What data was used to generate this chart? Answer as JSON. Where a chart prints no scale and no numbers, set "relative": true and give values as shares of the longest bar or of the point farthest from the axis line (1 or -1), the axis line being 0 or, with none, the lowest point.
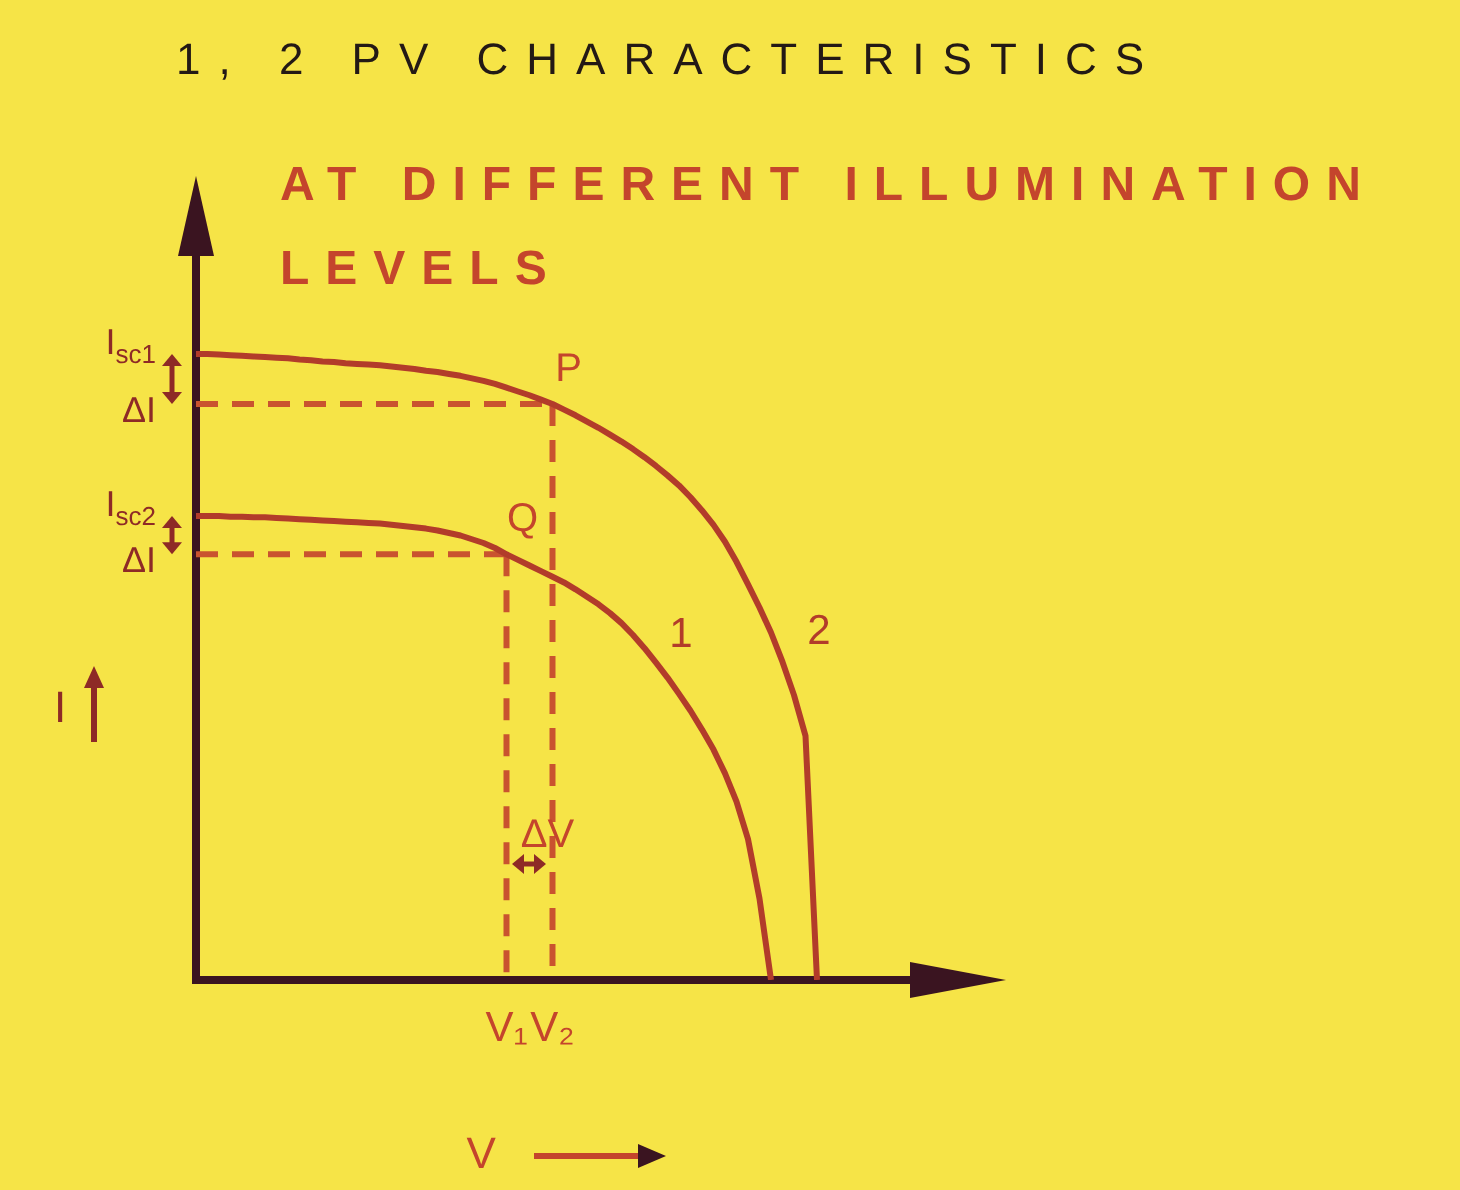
{
  "chart_data": {
    "type": "line",
    "title": "1, 2 PV CHARACTERISTICS",
    "subtitle": "AT DIFFERENT ILLUMINATION LEVELS",
    "xlabel": "V",
    "ylabel": "I",
    "relative": true,
    "marker": "none",
    "tick_labels": "x",
    "categories": [
      null,
      null,
      null,
      null,
      null,
      null,
      null,
      null,
      null,
      null,
      null,
      null,
      null,
      null,
      null,
      null,
      null,
      null,
      null,
      null,
      null,
      null,
      null,
      null,
      null,
      null,
      null,
      "V₁",
      null,
      null,
      null,
      "V₂",
      null,
      null,
      null,
      null,
      null,
      null,
      null,
      null,
      null,
      null,
      null,
      null,
      null,
      null,
      null,
      null,
      null,
      null,
      null,
      null,
      null,
      null,
      null,
      null,
      null,
      null,
      null,
      null,
      null,
      null,
      null
    ],
    "series": [
      {
        "name": "1",
        "color": "#b23c2a",
        "values": [
          0.741,
          0.741,
          0.741,
          0.74,
          0.74,
          0.739,
          0.739,
          0.738,
          0.737,
          0.736,
          0.735,
          0.734,
          0.733,
          0.732,
          0.731,
          0.73,
          0.729,
          0.727,
          0.725,
          0.723,
          0.721,
          0.718,
          0.714,
          0.71,
          0.704,
          0.698,
          0.69,
          0.68,
          0.671,
          0.662,
          0.653,
          0.644,
          0.635,
          0.624,
          0.612,
          0.6,
          0.586,
          0.57,
          0.551,
          0.53,
          0.507,
          0.483,
          0.457,
          0.43,
          0.4,
          0.368,
          0.33,
          0.285,
          0.225,
          0.13,
          0,
          null,
          null,
          null,
          null,
          null,
          null,
          null,
          null,
          null,
          null,
          null,
          null
        ]
      },
      {
        "name": "2",
        "color": "#b23c2a",
        "values": [
          1,
          1,
          0.999,
          0.998,
          0.997,
          0.996,
          0.995,
          0.994,
          0.993,
          0.991,
          0.99,
          0.988,
          0.987,
          0.985,
          0.984,
          0.983,
          0.982,
          0.98,
          0.978,
          0.976,
          0.973,
          0.971,
          0.968,
          0.965,
          0.961,
          0.957,
          0.952,
          0.946,
          0.94,
          0.934,
          0.927,
          0.92,
          0.911,
          0.902,
          0.892,
          0.882,
          0.871,
          0.86,
          0.848,
          0.835,
          0.821,
          0.806,
          0.79,
          0.771,
          0.75,
          0.727,
          0.7,
          0.668,
          0.632,
          0.595,
          0.555,
          0.508,
          0.455,
          0.39,
          0,
          null,
          null,
          null,
          null,
          null,
          null,
          null,
          null
        ]
      },
      {
        "color": "#c9532f",
        "line_style": "dashed",
        "values": [
          0.92,
          0.92,
          0.92,
          0.92,
          0.92,
          0.92,
          0.92,
          0.92,
          0.92,
          0.92,
          0.92,
          0.92,
          0.92,
          0.92,
          0.92,
          0.92,
          0.92,
          0.92,
          0.92,
          0.92,
          0.92,
          0.92,
          0.92,
          0.92,
          0.92,
          0.92,
          0.92,
          0.92,
          0.92,
          0.92,
          0.92,
          0.92,
          null,
          null,
          null,
          null,
          null,
          null,
          null,
          null,
          null,
          null,
          null,
          null,
          null,
          null,
          null,
          null,
          null,
          null,
          null,
          null,
          null,
          null,
          null,
          null,
          null,
          null,
          null,
          null,
          null,
          null,
          null
        ]
      },
      {
        "color": "#c9532f",
        "line_style": "dashed",
        "x": [
          "V₂",
          "V₂"
        ],
        "values": [
          0.92,
          0
        ]
      },
      {
        "color": "#c9532f",
        "line_style": "dashed",
        "values": [
          0.68,
          0.68,
          0.68,
          0.68,
          0.68,
          0.68,
          0.68,
          0.68,
          0.68,
          0.68,
          0.68,
          0.68,
          0.68,
          0.68,
          0.68,
          0.68,
          0.68,
          0.68,
          0.68,
          0.68,
          0.68,
          0.68,
          0.68,
          0.68,
          0.68,
          0.68,
          0.68,
          0.68,
          null,
          null,
          null,
          null,
          null,
          null,
          null,
          null,
          null,
          null,
          null,
          null,
          null,
          null,
          null,
          null,
          null,
          null,
          null,
          null,
          null,
          null,
          null,
          null,
          null,
          null,
          null,
          null,
          null,
          null,
          null,
          null,
          null,
          null,
          null
        ]
      },
      {
        "color": "#c9532f",
        "line_style": "dashed",
        "x": [
          "V₁",
          "V₁"
        ],
        "values": [
          0.68,
          0
        ]
      }
    ],
    "annotations": [
      "I$_{sc1}$",
      "ΔI",
      "I$_{sc2}$",
      "ΔI",
      {
        "text": "P",
        "x": "V₂",
        "y": 0.92
      },
      {
        "text": "Q",
        "x": "V₁",
        "y": 0.68
      },
      "ΔV"
    ]
  }
}
